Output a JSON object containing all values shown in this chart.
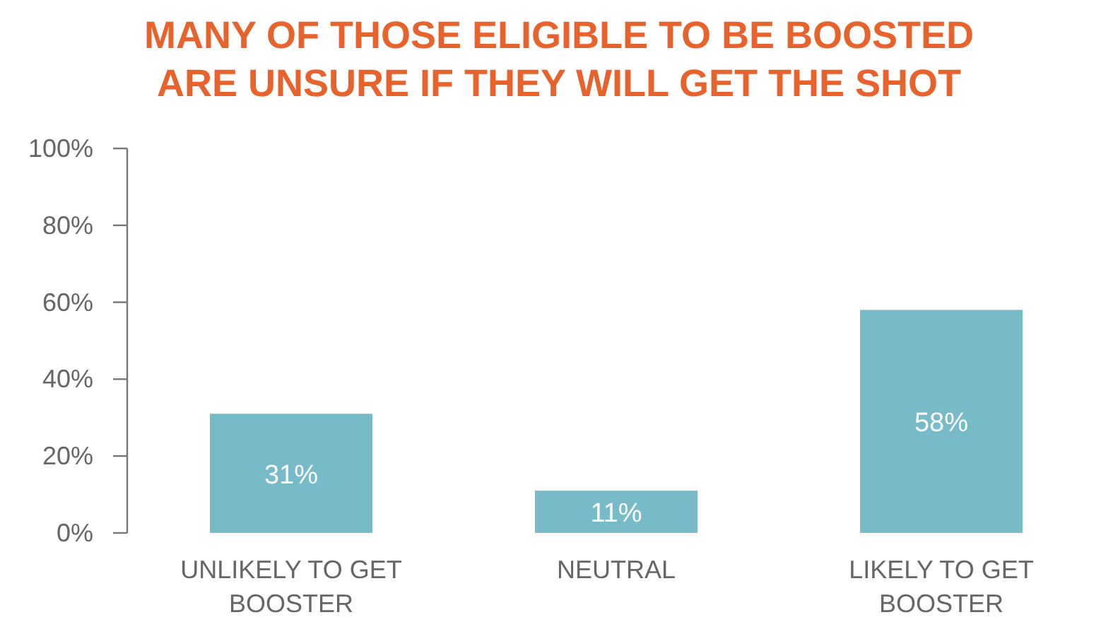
{
  "chart_data": {
    "type": "bar",
    "title": "MANY OF THOSE ELIGIBLE TO BE BOOSTED\nARE UNSURE IF THEY WILL GET THE SHOT",
    "categories": [
      "UNLIKELY TO GET BOOSTER",
      "NEUTRAL",
      "LIKELY TO GET BOOSTER"
    ],
    "values": [
      31,
      11,
      58
    ],
    "color": "#78bbc8",
    "ylim": [
      0,
      100
    ],
    "yticks": [
      {
        "value": 0,
        "label": "0%"
      },
      {
        "value": 20,
        "label": "20%"
      },
      {
        "value": 40,
        "label": "40%"
      },
      {
        "value": 60,
        "label": "60%"
      },
      {
        "value": 80,
        "label": "80%"
      },
      {
        "value": 100,
        "label": "100%"
      }
    ],
    "data_labels": true,
    "value_labels": [
      "31%",
      "11%",
      "58%"
    ],
    "grid": false
  }
}
